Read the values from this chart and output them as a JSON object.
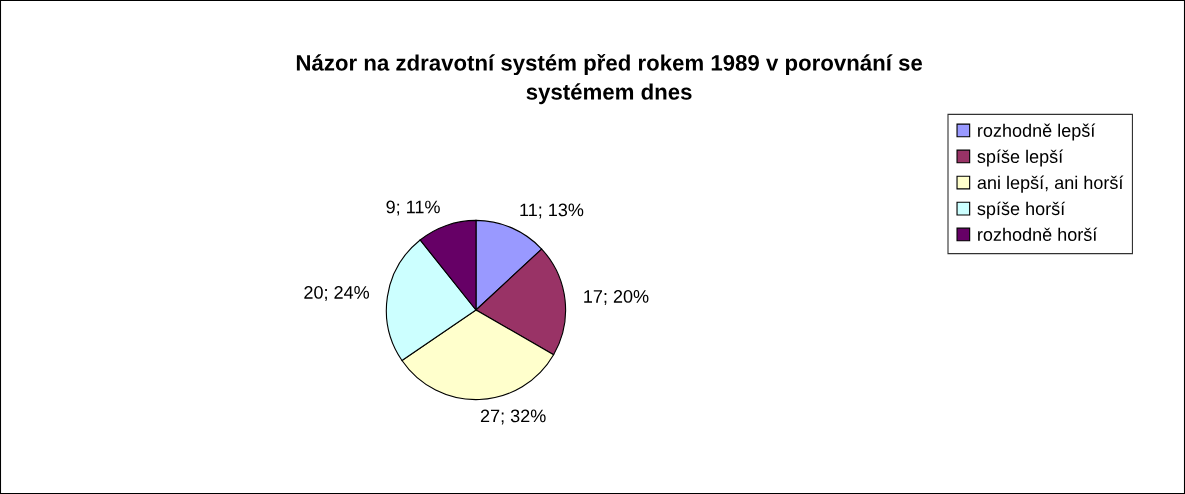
{
  "chart_data": {
    "type": "pie",
    "title": "Názor na zdravotní systém před rokem 1989 v porovnání se\nsystémem dnes",
    "categories": [
      "rozhodně lepší",
      "spíše lepší",
      "ani lepší, ani horší",
      "spíše horší",
      "rozhodně horší"
    ],
    "values": [
      11,
      17,
      27,
      20,
      9
    ],
    "value_labels": [
      "11; 13%",
      "17; 20%",
      "27; 32%",
      "20; 24%",
      "9; 11%"
    ],
    "colors": [
      "#9999ff",
      "#993366",
      "#ffffcc",
      "#ccffff",
      "#660066"
    ],
    "legend": "right"
  }
}
